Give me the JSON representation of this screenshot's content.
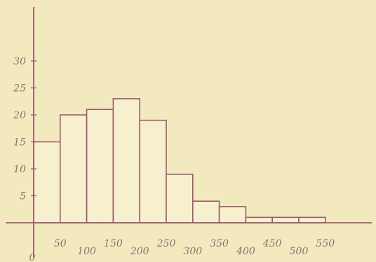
{
  "chart_data": {
    "type": "bar",
    "x_ticks": [
      "0",
      "50",
      "100",
      "150",
      "200",
      "250",
      "300",
      "350",
      "400",
      "450",
      "500",
      "550"
    ],
    "y_ticks": [
      "5",
      "10",
      "15",
      "20",
      "25",
      "30"
    ],
    "bins": [
      {
        "start": 0,
        "end": 50,
        "value": 15
      },
      {
        "start": 50,
        "end": 100,
        "value": 20
      },
      {
        "start": 100,
        "end": 150,
        "value": 21
      },
      {
        "start": 150,
        "end": 200,
        "value": 23
      },
      {
        "start": 200,
        "end": 250,
        "value": 19
      },
      {
        "start": 250,
        "end": 300,
        "value": 9
      },
      {
        "start": 300,
        "end": 350,
        "value": 4
      },
      {
        "start": 350,
        "end": 400,
        "value": 3
      },
      {
        "start": 400,
        "end": 450,
        "value": 1
      },
      {
        "start": 450,
        "end": 500,
        "value": 1
      },
      {
        "start": 500,
        "end": 550,
        "value": 1
      }
    ],
    "xlim": [
      0,
      550
    ],
    "ylim": [
      0,
      30
    ],
    "grid": false,
    "colors": {
      "background": "#f3e9bf",
      "line": "#9b5a6a",
      "text": "#8a7070",
      "bar_fill": "#f7f0cf"
    }
  }
}
